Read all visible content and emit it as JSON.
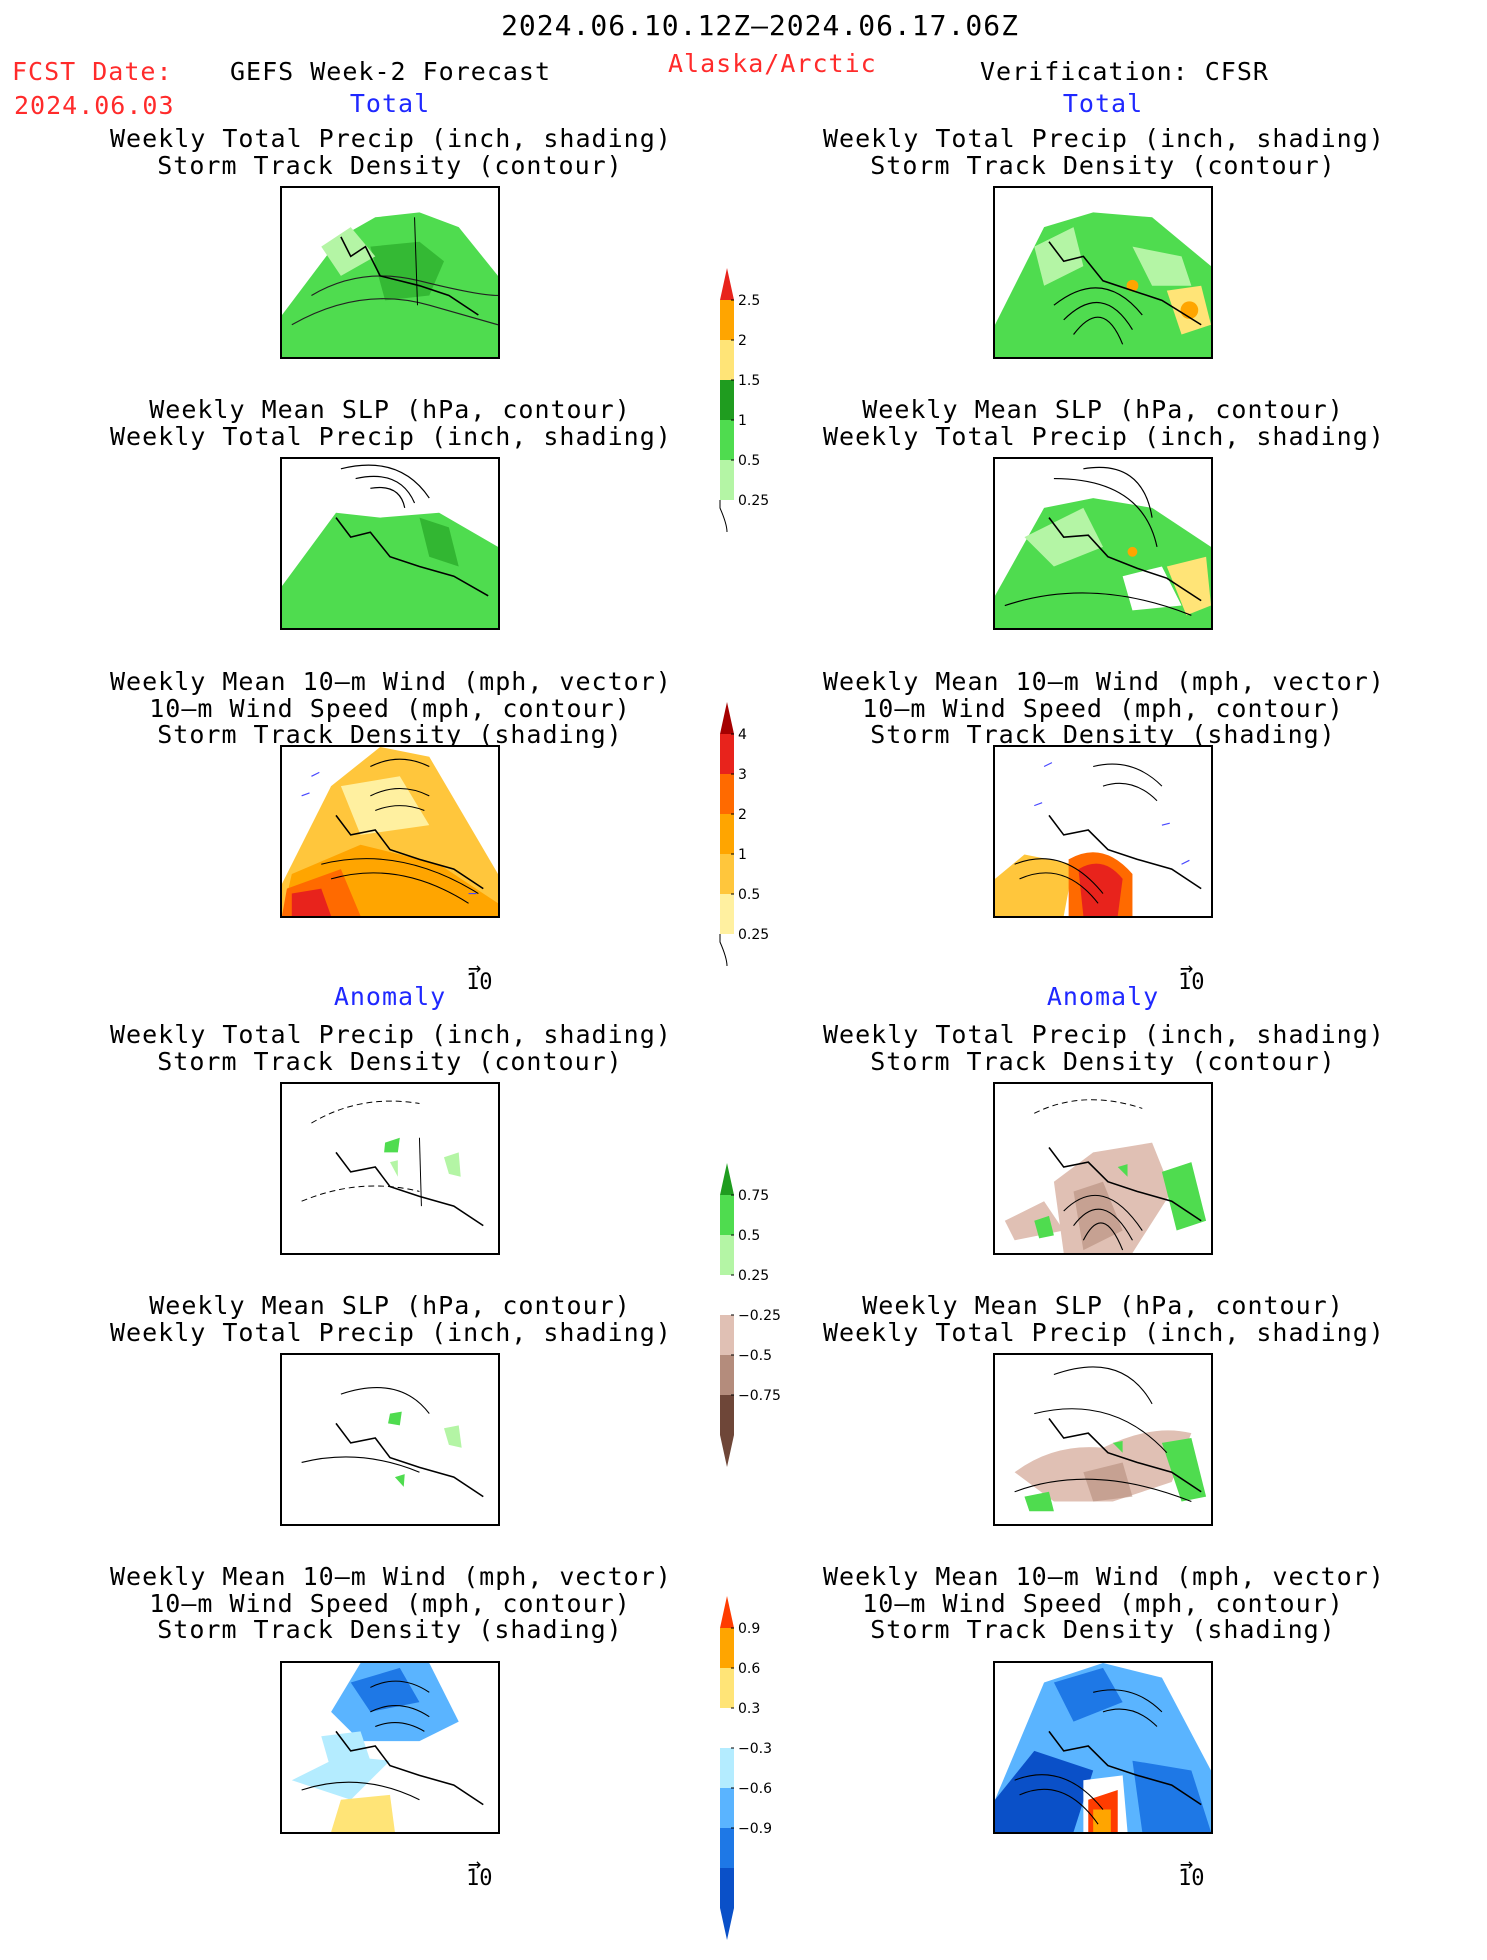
{
  "header": {
    "valid_period": "2024.06.10.12Z–2024.06.17.06Z",
    "fcst_label": "FCST Date:",
    "fcst_date": "2024.06.03",
    "model": "GEFS Week-2 Forecast",
    "region": "Alaska/Arctic",
    "verification": "Verification: CFSR"
  },
  "sections": {
    "total": "Total",
    "anomaly": "Anomaly"
  },
  "titles": {
    "precip_storm": [
      "Weekly Total Precip (inch, shading)",
      "Storm Track Density (contour)"
    ],
    "slp_precip": [
      "Weekly Mean SLP (hPa, contour)",
      "Weekly Total Precip (inch, shading)"
    ],
    "wind_storm": [
      "Weekly Mean 10–m Wind (mph, vector)",
      "10–m Wind Speed (mph, contour)",
      "Storm Track Density (shading)"
    ]
  },
  "vector_key": "10",
  "colorbars": {
    "precip_total": {
      "labels": [
        "2.5",
        "2",
        "1.5",
        "1",
        "0.5",
        "0.25"
      ],
      "colors": [
        "#e8231c",
        "#ffa500",
        "#ffe477",
        "#1f9c1f",
        "#4fdc4f",
        "#b4f5a5"
      ]
    },
    "storm_total": {
      "labels": [
        "4",
        "3",
        "2",
        "1",
        "0.5",
        "0.25"
      ],
      "colors": [
        "#a50000",
        "#e8231c",
        "#ff6a00",
        "#ffa500",
        "#ffc63c",
        "#fff0a0"
      ]
    },
    "precip_anom": {
      "labels": [
        "0.75",
        "0.5",
        "0.25",
        "−0.25",
        "−0.5",
        "−0.75"
      ],
      "colors": [
        "#1f9c1f",
        "#4fdc4f",
        "#b4f5a5",
        "#ffffff",
        "#e0c0b4",
        "#b48c7c",
        "#6e4638"
      ]
    },
    "storm_anom": {
      "labels": [
        "0.9",
        "0.6",
        "0.3",
        "−0.3",
        "−0.6",
        "−0.9"
      ],
      "colors": [
        "#ff3c00",
        "#ffa500",
        "#ffe477",
        "#ffffff",
        "#b4ecff",
        "#5ab4ff",
        "#1e78e6",
        "#0a50c8"
      ]
    }
  }
}
